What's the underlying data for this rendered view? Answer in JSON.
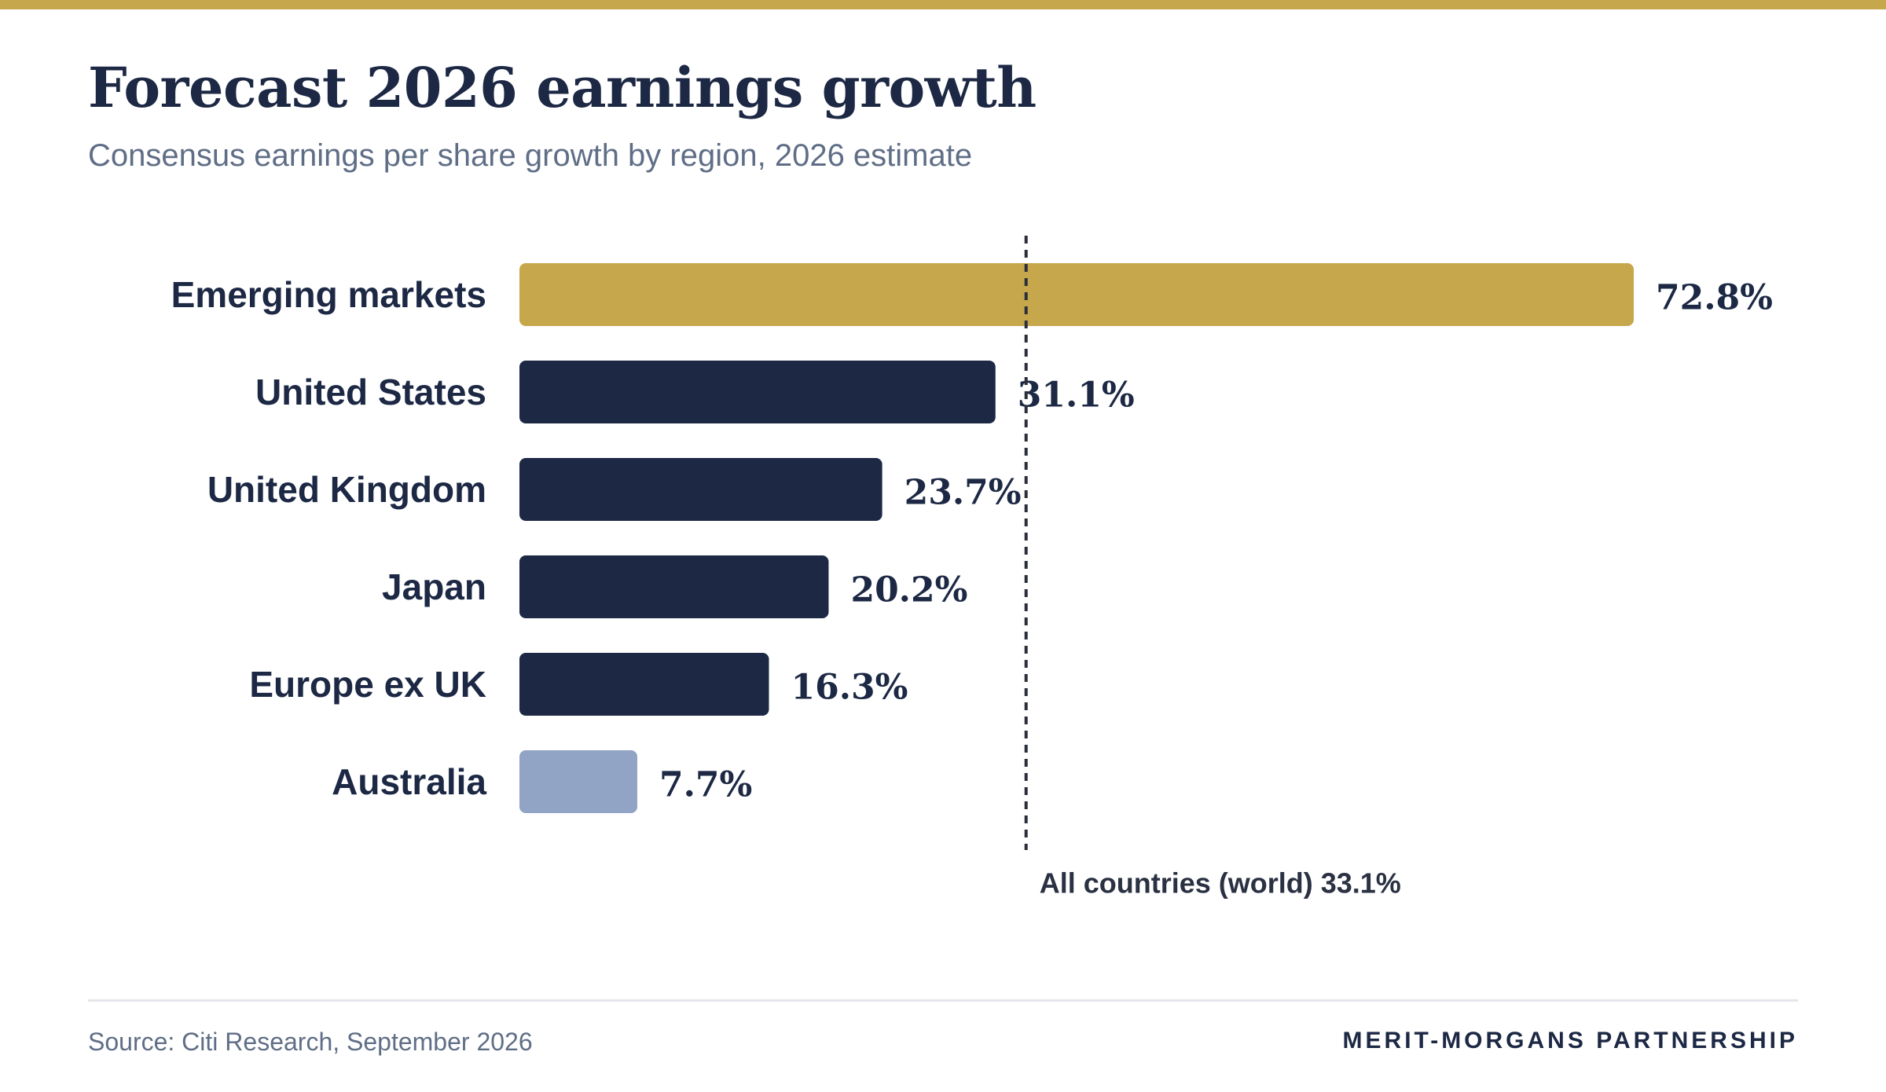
{
  "title": "Forecast 2026 earnings growth",
  "subtitle": "Consensus earnings per share growth by region, 2026 estimate",
  "source": "Source: Citi Research, September 2026",
  "brand": "MERIT-MORGANS PARTNERSHIP",
  "colors": {
    "accent_gold": "#C7A74B",
    "navy": "#1C2844",
    "light_blue": "#91A4C6",
    "muted_text": "#5F6E86"
  },
  "chart_data": {
    "type": "bar",
    "orientation": "horizontal",
    "categories": [
      "Emerging markets",
      "United States",
      "United Kingdom",
      "Japan",
      "Europe ex UK",
      "Australia"
    ],
    "values": [
      72.8,
      31.1,
      23.7,
      20.2,
      16.3,
      7.7
    ],
    "value_labels": [
      "72.8%",
      "31.1%",
      "23.7%",
      "20.2%",
      "16.3%",
      "7.7%"
    ],
    "bar_colors": [
      "#C7A74B",
      "#1C2844",
      "#1C2844",
      "#1C2844",
      "#1C2844",
      "#91A4C6"
    ],
    "reference_line": {
      "value": 33.1,
      "label": "All countries (world) 33.1%",
      "style": "dashed"
    },
    "xlim": [
      0,
      72.8
    ],
    "grid": false,
    "legend": "none"
  }
}
